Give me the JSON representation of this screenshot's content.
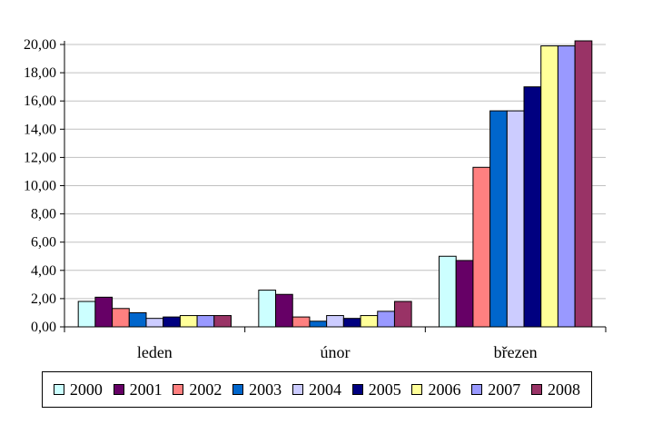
{
  "chart_data": {
    "type": "bar",
    "categories": [
      "leden",
      "únor",
      "březen"
    ],
    "series": [
      {
        "name": "2000",
        "color": "#CCFFFF",
        "values": [
          1.8,
          2.6,
          5.0
        ]
      },
      {
        "name": "2001",
        "color": "#660066",
        "values": [
          2.1,
          2.3,
          4.7
        ]
      },
      {
        "name": "2002",
        "color": "#FF8080",
        "values": [
          1.3,
          0.7,
          11.3
        ]
      },
      {
        "name": "2003",
        "color": "#0066CC",
        "values": [
          1.0,
          0.4,
          15.3
        ]
      },
      {
        "name": "2004",
        "color": "#CCCCFF",
        "values": [
          0.6,
          0.8,
          15.3
        ]
      },
      {
        "name": "2005",
        "color": "#000080",
        "values": [
          0.7,
          0.6,
          17.0
        ]
      },
      {
        "name": "2006",
        "color": "#FFFF99",
        "values": [
          0.8,
          0.8,
          19.9
        ]
      },
      {
        "name": "2007",
        "color": "#9999FF",
        "values": [
          0.8,
          1.1,
          19.9
        ]
      },
      {
        "name": "2008",
        "color": "#993366",
        "values": [
          0.8,
          1.8,
          20.4
        ]
      }
    ],
    "ylim": [
      0,
      20
    ],
    "yticks": [
      "0,00",
      "2,00",
      "4,00",
      "6,00",
      "8,00",
      "10,00",
      "12,00",
      "14,00",
      "16,00",
      "18,00",
      "20,00"
    ],
    "grid": true,
    "legend": "bottom",
    "title": "",
    "xlabel": "",
    "ylabel": ""
  }
}
